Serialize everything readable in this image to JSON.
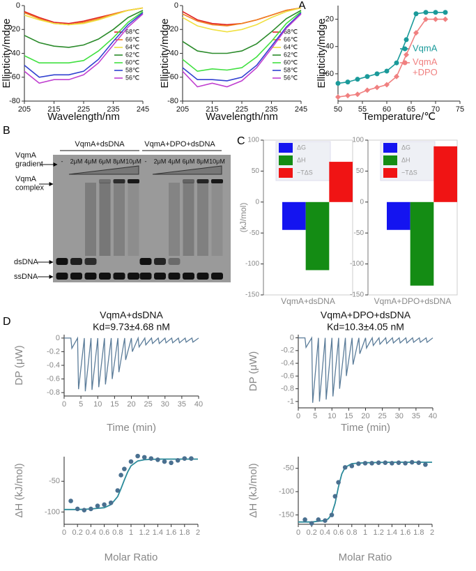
{
  "panel_labels": [
    "A",
    "B",
    "C",
    "D"
  ],
  "gel": {
    "groups": [
      "VqmA+dsDNA",
      "VqmA+DPO+dsDNA"
    ],
    "gradient_label": "VqmA\ngradient",
    "lanes": [
      [
        "-",
        "2μM",
        "4μM",
        "6μM",
        "8μM",
        "10μM"
      ],
      [
        "-",
        "2μM",
        "4μM",
        "6μM",
        "8μM",
        "10μM"
      ]
    ],
    "complex_label": "VqmA\ncomplex",
    "dsdna_label": "dsDNA",
    "ssdna_label": "ssDNA"
  },
  "chart_data": [
    {
      "type": "line",
      "xlabel": "Wavelength/nm",
      "ylabel": "Ellipticity/mdge",
      "x": [
        205,
        210,
        215,
        220,
        225,
        230,
        235,
        240,
        245
      ],
      "xlim": [
        205,
        245
      ],
      "xticks": [
        205,
        215,
        225,
        235,
        245
      ],
      "ylim": [
        -80,
        0
      ],
      "yticks": [
        -80,
        -60,
        -40,
        -20,
        0
      ],
      "series": [
        {
          "name": "68℃",
          "color": "#e02020",
          "values": [
            -5,
            -10,
            -14,
            -15,
            -13,
            -10,
            -7,
            -4,
            -2
          ]
        },
        {
          "name": "66℃",
          "color": "#f08020",
          "values": [
            -6,
            -11,
            -15,
            -16,
            -14,
            -11,
            -7,
            -4,
            -2
          ]
        },
        {
          "name": "64℃",
          "color": "#f0e040",
          "values": [
            -8,
            -12,
            -15,
            -16,
            -15,
            -12,
            -8,
            -4,
            -2
          ]
        },
        {
          "name": "62℃",
          "color": "#2a8a2a",
          "values": [
            -25,
            -31,
            -34,
            -35,
            -33,
            -28,
            -20,
            -10,
            -4
          ]
        },
        {
          "name": "60℃",
          "color": "#40e040",
          "values": [
            -42,
            -48,
            -48,
            -48,
            -46,
            -38,
            -27,
            -14,
            -5
          ]
        },
        {
          "name": "58℃",
          "color": "#3040d0",
          "values": [
            -50,
            -60,
            -58,
            -58,
            -55,
            -45,
            -30,
            -16,
            -6
          ]
        },
        {
          "name": "56℃",
          "color": "#c040d0",
          "values": [
            -55,
            -65,
            -62,
            -62,
            -58,
            -48,
            -33,
            -18,
            -7
          ]
        }
      ]
    },
    {
      "type": "line",
      "xlabel": "Wavelength/nm",
      "ylabel": "Ellipticity/mdge",
      "x": [
        205,
        210,
        215,
        220,
        225,
        230,
        235,
        240,
        245
      ],
      "xlim": [
        205,
        245
      ],
      "xticks": [
        205,
        215,
        225,
        235,
        245
      ],
      "ylim": [
        -80,
        0
      ],
      "yticks": [
        -80,
        -60,
        -40,
        -20,
        0
      ],
      "series": [
        {
          "name": "68℃",
          "color": "#e02020",
          "values": [
            -5,
            -12,
            -15,
            -16,
            -15,
            -12,
            -8,
            -4,
            -2
          ]
        },
        {
          "name": "66℃",
          "color": "#f08020",
          "values": [
            -7,
            -13,
            -16,
            -17,
            -15,
            -12,
            -8,
            -4,
            -2
          ]
        },
        {
          "name": "64℃",
          "color": "#f0e040",
          "values": [
            -10,
            -17,
            -20,
            -22,
            -20,
            -16,
            -10,
            -5,
            -2
          ]
        },
        {
          "name": "62℃",
          "color": "#2a8a2a",
          "values": [
            -30,
            -38,
            -40,
            -40,
            -38,
            -32,
            -22,
            -11,
            -4
          ]
        },
        {
          "name": "60℃",
          "color": "#40e040",
          "values": [
            -45,
            -55,
            -53,
            -54,
            -52,
            -43,
            -30,
            -15,
            -5
          ]
        },
        {
          "name": "58℃",
          "color": "#3040d0",
          "values": [
            -52,
            -62,
            -62,
            -63,
            -60,
            -50,
            -34,
            -18,
            -6
          ]
        },
        {
          "name": "56℃",
          "color": "#c040d0",
          "values": [
            -55,
            -68,
            -65,
            -68,
            -63,
            -52,
            -36,
            -19,
            -7
          ]
        }
      ]
    },
    {
      "type": "line",
      "xlabel": "Temperature/℃",
      "ylabel": "Ellipticity/mdge",
      "x": [
        50,
        52,
        54,
        56,
        58,
        60,
        62,
        64,
        66,
        68,
        70,
        72
      ],
      "xlim": [
        50,
        75
      ],
      "xticks": [
        50,
        55,
        60,
        65,
        70,
        75
      ],
      "ylim": [
        -80,
        -10
      ],
      "yticks": [
        -60,
        -40,
        -20
      ],
      "series": [
        {
          "name": "VqmA",
          "color": "#1a9a9a",
          "marker": "circle",
          "values": [
            -67,
            -66,
            -64,
            -62,
            -60,
            -58,
            -52,
            -35,
            -16,
            -15,
            -15,
            -15
          ]
        },
        {
          "name": "VqmA\n+DPO",
          "color": "#f08080",
          "marker": "diamond",
          "values": [
            -77,
            -76,
            -75,
            -72,
            -70,
            -68,
            -62,
            -46,
            -30,
            -20,
            -20,
            -20
          ]
        }
      ]
    },
    {
      "type": "bar",
      "ylabel": "(kJ/mol)",
      "xlabel": "VqmA+dsDNA",
      "categories": [
        "ΔG",
        "ΔH",
        "−TΔS"
      ],
      "values": [
        -45,
        -110,
        65
      ],
      "colors": [
        "#1414f0",
        "#148c14",
        "#f01414"
      ],
      "ylim": [
        -150,
        100
      ],
      "yticks": [
        -150,
        -100,
        -50,
        0,
        50,
        100
      ]
    },
    {
      "type": "bar",
      "xlabel": "VqmA+DPO+dsDNA",
      "categories": [
        "ΔG",
        "ΔH",
        "−TΔS"
      ],
      "values": [
        -45,
        -135,
        90
      ],
      "colors": [
        "#1414f0",
        "#148c14",
        "#f01414"
      ],
      "ylim": [
        -150,
        100
      ],
      "yticks": [
        -150,
        -100,
        -50,
        0,
        50,
        100
      ]
    },
    {
      "type": "line",
      "title": "VqmA+dsDNA",
      "subtitle": "Kd=9.73±4.68 nM",
      "xlabel": "Time (min)",
      "ylabel": "DP (μW)",
      "color": "#5b7c99",
      "x": [
        0,
        2,
        2.3,
        4,
        4.3,
        6,
        6.3,
        8,
        8.3,
        10,
        10.3,
        12,
        12.3,
        14,
        14.3,
        16,
        16.3,
        18,
        18.3,
        20,
        20.3,
        22,
        22.3,
        24,
        24.3,
        26,
        26.3,
        28,
        28.3,
        30,
        30.3,
        32,
        32.3,
        34,
        34.3,
        36,
        36.3,
        38,
        38.3,
        40
      ],
      "values": [
        0,
        0,
        -0.15,
        0,
        -0.75,
        0,
        -0.78,
        0,
        -0.76,
        0,
        -0.72,
        0,
        -0.68,
        0,
        -0.6,
        0,
        -0.5,
        0,
        -0.32,
        0,
        -0.2,
        0,
        -0.13,
        0,
        -0.1,
        0,
        -0.08,
        0,
        -0.08,
        0,
        -0.07,
        0,
        -0.07,
        0,
        -0.07,
        0,
        -0.06,
        0,
        -0.06,
        0
      ],
      "xlim": [
        0,
        40
      ],
      "xticks": [
        0,
        5,
        10,
        15,
        20,
        25,
        30,
        35,
        40
      ],
      "ylim": [
        -0.85,
        0.05
      ],
      "yticks": [
        -0.8,
        -0.6,
        -0.4,
        -0.2,
        0
      ]
    },
    {
      "type": "line",
      "title": "VqmA+DPO+dsDNA",
      "subtitle": "Kd=10.3±4.05 nM",
      "xlabel": "Time (min)",
      "ylabel": "DP (μW)",
      "color": "#5b7c99",
      "x": [
        0,
        2,
        2.3,
        4,
        4.3,
        6,
        6.3,
        8,
        8.3,
        10,
        10.3,
        12,
        12.3,
        14,
        14.3,
        16,
        16.3,
        18,
        18.3,
        20,
        20.3,
        22,
        22.3,
        24,
        24.3,
        26,
        26.3,
        28,
        28.3,
        30,
        30.3,
        32,
        32.3,
        34,
        34.3,
        36,
        36.3,
        38,
        38.3,
        40
      ],
      "values": [
        0,
        0,
        -0.15,
        0,
        -1.02,
        0,
        -1,
        0,
        -0.97,
        0,
        -0.92,
        0,
        -0.8,
        0,
        -0.6,
        0,
        -0.42,
        0,
        -0.25,
        0,
        -0.16,
        0,
        -0.12,
        0,
        -0.1,
        0,
        -0.09,
        0,
        -0.08,
        0,
        -0.08,
        0,
        -0.08,
        0,
        -0.07,
        0,
        -0.07,
        0,
        -0.07,
        0
      ],
      "xlim": [
        0,
        40
      ],
      "xticks": [
        0,
        5,
        10,
        15,
        20,
        25,
        30,
        35,
        40
      ],
      "ylim": [
        -1.1,
        0.05
      ],
      "yticks": [
        -1,
        -0.8,
        -0.6,
        -0.4,
        -0.2,
        0
      ]
    },
    {
      "type": "scatter",
      "xlabel": "Molar Ratio",
      "ylabel": "ΔH (kJ/mol)",
      "color": "#4a7090",
      "fit_color": "#2a8a9a",
      "x": [
        0.1,
        0.2,
        0.3,
        0.4,
        0.5,
        0.6,
        0.7,
        0.8,
        0.85,
        0.9,
        1.0,
        1.1,
        1.2,
        1.3,
        1.4,
        1.5,
        1.6,
        1.7,
        1.8,
        1.9
      ],
      "values": [
        -82,
        -95,
        -97,
        -95,
        -90,
        -88,
        -85,
        -65,
        -40,
        -30,
        -18,
        -9,
        -11,
        -13,
        -15,
        -18,
        -20,
        -16,
        -13,
        -13
      ],
      "fit_x": [
        0,
        0.2,
        0.4,
        0.6,
        0.7,
        0.8,
        0.85,
        0.9,
        0.95,
        1.0,
        1.1,
        1.2,
        1.4,
        1.6,
        1.8,
        2.0
      ],
      "fit_values": [
        -96,
        -96,
        -95,
        -93,
        -88,
        -75,
        -62,
        -48,
        -35,
        -25,
        -17,
        -15,
        -14,
        -14,
        -14,
        -14
      ],
      "xlim": [
        0,
        2
      ],
      "xticks": [
        0,
        0.2,
        0.4,
        0.6,
        0.8,
        1,
        1.2,
        1.4,
        1.6,
        1.8,
        2
      ],
      "ylim": [
        -120,
        -10
      ],
      "yticks": [
        -100,
        -50
      ]
    },
    {
      "type": "scatter",
      "xlabel": "Molar Ratio",
      "ylabel": "ΔH (kJ/mol)",
      "color": "#4a7090",
      "fit_color": "#2a8a9a",
      "x": [
        0.1,
        0.2,
        0.3,
        0.4,
        0.5,
        0.55,
        0.6,
        0.7,
        0.8,
        0.9,
        1.0,
        1.1,
        1.2,
        1.3,
        1.4,
        1.5,
        1.6,
        1.7,
        1.8,
        1.9
      ],
      "values": [
        -160,
        -168,
        -160,
        -162,
        -150,
        -110,
        -80,
        -48,
        -45,
        -40,
        -39,
        -39,
        -38,
        -38,
        -39,
        -38,
        -39,
        -37,
        -38,
        -42
      ],
      "fit_x": [
        0,
        0.2,
        0.4,
        0.45,
        0.5,
        0.55,
        0.6,
        0.65,
        0.7,
        0.8,
        1.0,
        1.4,
        2.0
      ],
      "fit_values": [
        -165,
        -165,
        -162,
        -158,
        -148,
        -125,
        -90,
        -62,
        -48,
        -40,
        -38,
        -37,
        -37
      ],
      "xlim": [
        0,
        2
      ],
      "xticks": [
        0,
        0.2,
        0.4,
        0.6,
        0.8,
        1,
        1.2,
        1.4,
        1.6,
        1.8,
        2
      ],
      "ylim": [
        -170,
        -25
      ],
      "yticks": [
        -150,
        -100,
        -50
      ]
    }
  ]
}
